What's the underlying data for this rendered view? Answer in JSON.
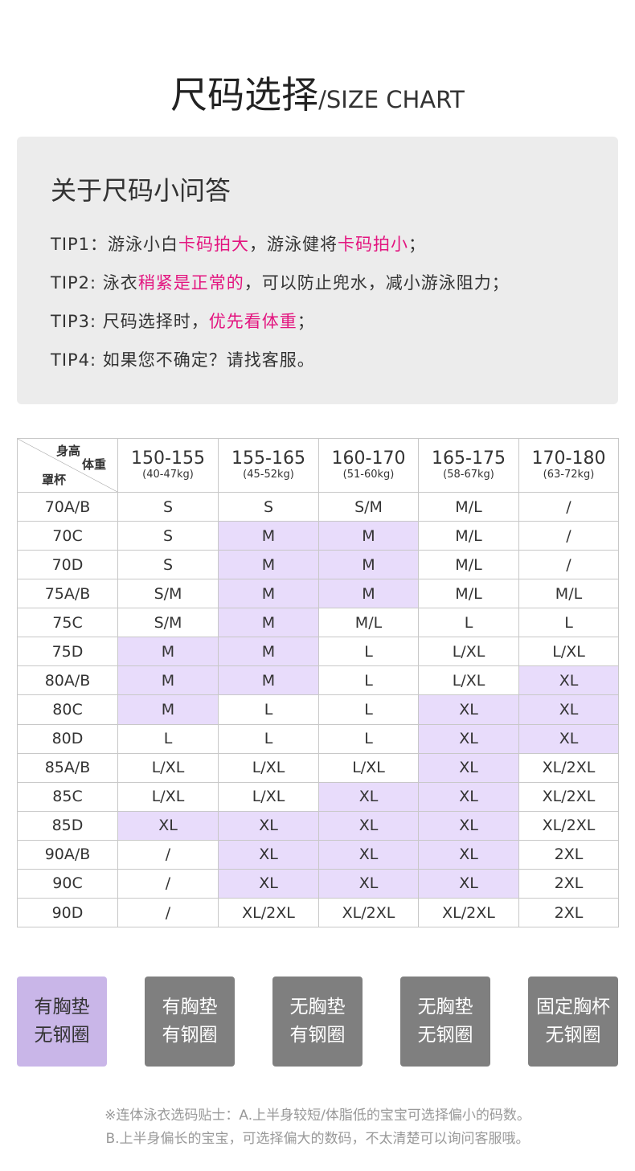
{
  "header": {
    "title": "尺码选择",
    "subtitle": "/SIZE CHART"
  },
  "faq": {
    "title": "关于尺码小问答",
    "tips": [
      [
        {
          "text": "TIP1：游泳小白",
          "highlight": false
        },
        {
          "text": "卡码拍大",
          "highlight": true
        },
        {
          "text": "，游泳健将",
          "highlight": false
        },
        {
          "text": "卡码拍小",
          "highlight": true
        },
        {
          "text": "；",
          "highlight": false
        }
      ],
      [
        {
          "text": "TIP2: 泳衣",
          "highlight": false
        },
        {
          "text": "稍紧是正常的",
          "highlight": true
        },
        {
          "text": "，可以防止兜水，减小游泳阻力；",
          "highlight": false
        }
      ],
      [
        {
          "text": "TIP3: 尺码选择时，",
          "highlight": false
        },
        {
          "text": "优先看体重",
          "highlight": true
        },
        {
          "text": "；",
          "highlight": false
        }
      ],
      [
        {
          "text": "TIP4: 如果您不确定？请找客服。",
          "highlight": false
        }
      ]
    ]
  },
  "table": {
    "corner": [
      "身高",
      "体重",
      "罩杯"
    ],
    "columns": [
      {
        "height": "150-155",
        "weight": "(40-47kg)"
      },
      {
        "height": "155-165",
        "weight": "(45-52kg)"
      },
      {
        "height": "160-170",
        "weight": "(51-60kg)"
      },
      {
        "height": "165-175",
        "weight": "(58-67kg)"
      },
      {
        "height": "170-180",
        "weight": "(63-72kg)"
      }
    ],
    "rows": [
      {
        "cup": "70A/B",
        "sizes": [
          "S",
          "S",
          "S/M",
          "M/L",
          "/"
        ],
        "highlight": [
          false,
          false,
          false,
          false,
          false
        ]
      },
      {
        "cup": "70C",
        "sizes": [
          "S",
          "M",
          "M",
          "M/L",
          "/"
        ],
        "highlight": [
          false,
          true,
          true,
          false,
          false
        ]
      },
      {
        "cup": "70D",
        "sizes": [
          "S",
          "M",
          "M",
          "M/L",
          "/"
        ],
        "highlight": [
          false,
          true,
          true,
          false,
          false
        ]
      },
      {
        "cup": "75A/B",
        "sizes": [
          "S/M",
          "M",
          "M",
          "M/L",
          "M/L"
        ],
        "highlight": [
          false,
          true,
          true,
          false,
          false
        ]
      },
      {
        "cup": "75C",
        "sizes": [
          "S/M",
          "M",
          "M/L",
          "L",
          "L"
        ],
        "highlight": [
          false,
          true,
          false,
          false,
          false
        ]
      },
      {
        "cup": "75D",
        "sizes": [
          "M",
          "M",
          "L",
          "L/XL",
          "L/XL"
        ],
        "highlight": [
          true,
          true,
          false,
          false,
          false
        ]
      },
      {
        "cup": "80A/B",
        "sizes": [
          "M",
          "M",
          "L",
          "L/XL",
          "XL"
        ],
        "highlight": [
          true,
          true,
          false,
          false,
          true
        ]
      },
      {
        "cup": "80C",
        "sizes": [
          "M",
          "L",
          "L",
          "XL",
          "XL"
        ],
        "highlight": [
          true,
          false,
          false,
          true,
          true
        ]
      },
      {
        "cup": "80D",
        "sizes": [
          "L",
          "L",
          "L",
          "XL",
          "XL"
        ],
        "highlight": [
          false,
          false,
          false,
          true,
          true
        ]
      },
      {
        "cup": "85A/B",
        "sizes": [
          "L/XL",
          "L/XL",
          "L/XL",
          "XL",
          "XL/2XL"
        ],
        "highlight": [
          false,
          false,
          false,
          true,
          false
        ]
      },
      {
        "cup": "85C",
        "sizes": [
          "L/XL",
          "L/XL",
          "XL",
          "XL",
          "XL/2XL"
        ],
        "highlight": [
          false,
          false,
          true,
          true,
          false
        ]
      },
      {
        "cup": "85D",
        "sizes": [
          "XL",
          "XL",
          "XL",
          "XL",
          "XL/2XL"
        ],
        "highlight": [
          true,
          true,
          true,
          true,
          false
        ]
      },
      {
        "cup": "90A/B",
        "sizes": [
          "/",
          "XL",
          "XL",
          "XL",
          "2XL"
        ],
        "highlight": [
          false,
          true,
          true,
          true,
          false
        ]
      },
      {
        "cup": "90C",
        "sizes": [
          "/",
          "XL",
          "XL",
          "XL",
          "2XL"
        ],
        "highlight": [
          false,
          true,
          true,
          true,
          false
        ]
      },
      {
        "cup": "90D",
        "sizes": [
          "/",
          "XL/2XL",
          "XL/2XL",
          "XL/2XL",
          "2XL"
        ],
        "highlight": [
          false,
          false,
          false,
          false,
          false
        ]
      }
    ]
  },
  "types": [
    {
      "lines": [
        "有胸垫",
        "无钢圈"
      ],
      "active": true
    },
    {
      "lines": [
        "有胸垫",
        "有钢圈"
      ],
      "active": false
    },
    {
      "lines": [
        "无胸垫",
        "有钢圈"
      ],
      "active": false
    },
    {
      "lines": [
        "无胸垫",
        "无钢圈"
      ],
      "active": false
    },
    {
      "lines": [
        "固定胸杯",
        "无钢圈"
      ],
      "active": false
    }
  ],
  "notes": [
    "※连体泳衣选码贴士：A.上半身较短/体脂低的宝宝可选择偏小的码数。",
    "B.上半身偏长的宝宝，可选择偏大的数码，不太清楚可以询问客服哦。"
  ]
}
